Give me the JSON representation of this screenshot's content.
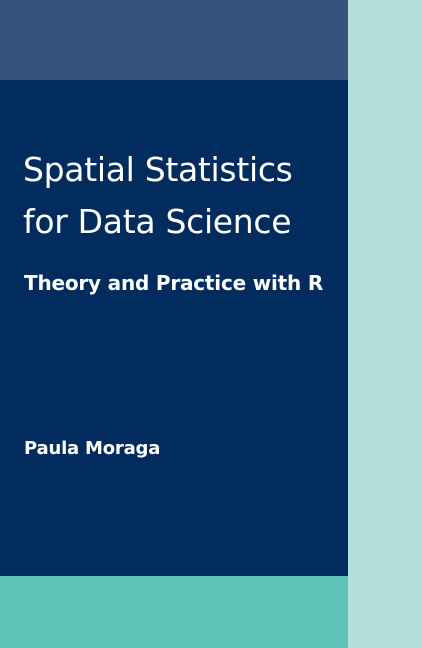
{
  "cover": {
    "title_line_1": "Spatial Statistics",
    "title_line_2": "for Data Science",
    "subtitle": "Theory and Practice with R",
    "author": "Paula Moraga"
  },
  "colors": {
    "top_band": "#35537f",
    "main_panel": "#022c5e",
    "bottom_band": "#5fc3b7",
    "side_strip": "#b3deda",
    "text": "#ffffff"
  }
}
